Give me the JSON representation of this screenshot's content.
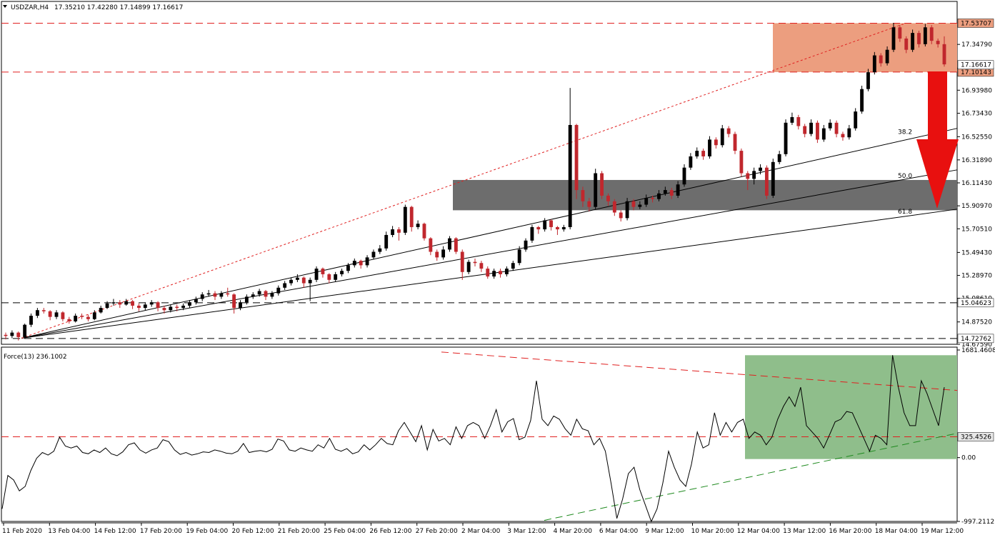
{
  "header": {
    "symbol": "USDZAR,H4",
    "ohlc": "17.35210 17.42280 17.14899 17.16617"
  },
  "indicator": {
    "label": "Force(13) 236.1002"
  },
  "colors": {
    "bull": "#000000",
    "bear": "#c0272d",
    "resistance_zone": "#ec9e7f",
    "support_zone": "#6d6d6d",
    "force_zone": "#8fbe8b",
    "arrow": "#e8100f",
    "dashed_red": "#e02020",
    "dashed_green": "#1f8a1f",
    "bid_label": "#000000"
  },
  "chart_data": [
    {
      "type": "candlestick",
      "title": "USDZAR,H4",
      "ylim": [
        14.6759,
        17.629
      ],
      "y_ticks": [
        "17.34790",
        "16.93980",
        "16.73430",
        "16.52550",
        "16.31890",
        "16.11430",
        "15.90970",
        "15.70510",
        "15.49430",
        "15.28970",
        "15.08610",
        "14.87520",
        "14.67590"
      ],
      "x_ticks": [
        "11 Feb 2020",
        "13 Feb 04:00",
        "14 Feb 12:00",
        "17 Feb 20:00",
        "19 Feb 04:00",
        "20 Feb 12:00",
        "21 Feb 20:00",
        "25 Feb 04:00",
        "26 Feb 12:00",
        "27 Feb 20:00",
        "2 Mar 04:00",
        "3 Mar 12:00",
        "4 Mar 20:00",
        "6 Mar 04:00",
        "9 Mar 12:00",
        "10 Mar 20:00",
        "12 Mar 04:00",
        "13 Mar 12:00",
        "16 Mar 20:00",
        "18 Mar 04:00",
        "19 Mar 12:00"
      ],
      "horizontal_levels": [
        {
          "value": 17.53707,
          "label": "17.53707"
        },
        {
          "value": 17.10143,
          "label": "17.10143"
        },
        {
          "value": 15.04623,
          "label": "15.04623"
        },
        {
          "value": 14.72762,
          "label": "14.72762"
        }
      ],
      "current_price": {
        "value": 17.16617,
        "label": "17.16617"
      },
      "zones": [
        {
          "name": "resistance",
          "from": 17.10143,
          "to": 17.53707
        },
        {
          "name": "support",
          "from": 15.87,
          "to": 16.14
        }
      ],
      "fib_fan_labels": [
        "38.2",
        "50.0",
        "61.8"
      ],
      "close": [
        14.75,
        14.78,
        14.74,
        14.85,
        14.93,
        14.98,
        14.97,
        14.92,
        14.96,
        14.9,
        14.88,
        14.93,
        14.92,
        14.9,
        14.96,
        15.0,
        15.04,
        15.05,
        15.03,
        15.06,
        15.02,
        15.0,
        15.03,
        15.05,
        15.0,
        14.98,
        15.01,
        15.0,
        15.02,
        15.05,
        15.08,
        15.12,
        15.13,
        15.1,
        15.13,
        15.12,
        15.0,
        15.05,
        15.1,
        15.12,
        15.15,
        15.1,
        15.13,
        15.18,
        15.22,
        15.25,
        15.27,
        15.22,
        15.25,
        15.35,
        15.3,
        15.25,
        15.3,
        15.33,
        15.38,
        15.42,
        15.38,
        15.45,
        15.5,
        15.53,
        15.65,
        15.7,
        15.67,
        15.9,
        15.72,
        15.75,
        15.62,
        15.5,
        15.45,
        15.52,
        15.62,
        15.5,
        15.32,
        15.41,
        15.4,
        15.35,
        15.28,
        15.33,
        15.3,
        15.35,
        15.4,
        15.52,
        15.6,
        15.72,
        15.7,
        15.78,
        15.72,
        15.7,
        15.72,
        16.63,
        16.05,
        15.95,
        15.9,
        16.2,
        16.0,
        15.95,
        15.85,
        15.8,
        15.95,
        15.9,
        15.92,
        15.98,
        15.97,
        16.02,
        16.05,
        16.0,
        16.1,
        16.25,
        16.35,
        16.4,
        16.35,
        16.5,
        16.45,
        16.6,
        16.55,
        16.4,
        16.2,
        16.15,
        16.22,
        16.25,
        16.0,
        16.3,
        16.37,
        16.65,
        16.7,
        16.62,
        16.55,
        16.65,
        16.5,
        16.6,
        16.65,
        16.55,
        16.52,
        16.6,
        16.75,
        16.95,
        17.1,
        17.25,
        17.18,
        17.3,
        17.5,
        17.4,
        17.3,
        17.45,
        17.35,
        17.5,
        17.38,
        17.35,
        17.17
      ],
      "ohlc": [
        [
          14.76,
          14.78,
          14.72,
          14.75
        ],
        [
          14.75,
          14.8,
          14.73,
          14.78
        ],
        [
          14.78,
          14.79,
          14.71,
          14.74
        ],
        [
          14.74,
          14.86,
          14.73,
          14.85
        ],
        [
          14.85,
          14.95,
          14.83,
          14.93
        ],
        [
          14.93,
          15.0,
          14.91,
          14.98
        ],
        [
          14.98,
          15.0,
          14.95,
          14.97
        ],
        [
          14.97,
          14.98,
          14.89,
          14.92
        ],
        [
          14.92,
          14.98,
          14.9,
          14.96
        ],
        [
          14.96,
          14.97,
          14.88,
          14.9
        ],
        [
          14.9,
          14.92,
          14.86,
          14.88
        ],
        [
          14.88,
          14.95,
          14.87,
          14.93
        ],
        [
          14.93,
          14.95,
          14.9,
          14.92
        ],
        [
          14.92,
          14.94,
          14.88,
          14.9
        ],
        [
          14.9,
          14.98,
          14.89,
          14.96
        ],
        [
          14.96,
          15.02,
          14.95,
          15.0
        ],
        [
          15.0,
          15.06,
          14.99,
          15.04
        ],
        [
          15.04,
          15.08,
          15.02,
          15.05
        ],
        [
          15.05,
          15.07,
          15.0,
          15.03
        ],
        [
          15.03,
          15.08,
          15.02,
          15.06
        ],
        [
          15.06,
          15.07,
          14.99,
          15.02
        ],
        [
          15.02,
          15.04,
          14.97,
          15.0
        ],
        [
          15.0,
          15.05,
          14.98,
          15.03
        ],
        [
          15.03,
          15.07,
          15.01,
          15.05
        ],
        [
          15.05,
          15.06,
          14.97,
          15.0
        ],
        [
          15.0,
          15.02,
          14.95,
          14.98
        ],
        [
          14.98,
          15.03,
          14.96,
          15.01
        ],
        [
          15.01,
          15.03,
          14.97,
          15.0
        ],
        [
          15.0,
          15.04,
          14.98,
          15.02
        ],
        [
          15.02,
          15.07,
          15.0,
          15.05
        ],
        [
          15.05,
          15.1,
          15.03,
          15.08
        ],
        [
          15.08,
          15.14,
          15.06,
          15.12
        ],
        [
          15.12,
          15.16,
          15.1,
          15.13
        ],
        [
          15.13,
          15.15,
          15.07,
          15.1
        ],
        [
          15.1,
          15.15,
          15.08,
          15.13
        ],
        [
          15.13,
          15.18,
          15.1,
          15.12
        ],
        [
          15.12,
          15.13,
          14.95,
          15.0
        ],
        [
          15.0,
          15.07,
          14.98,
          15.05
        ],
        [
          15.05,
          15.12,
          15.03,
          15.1
        ],
        [
          15.1,
          15.14,
          15.08,
          15.12
        ],
        [
          15.12,
          15.17,
          15.1,
          15.15
        ],
        [
          15.15,
          15.16,
          15.07,
          15.1
        ],
        [
          15.1,
          15.15,
          15.08,
          15.13
        ],
        [
          15.13,
          15.2,
          15.11,
          15.18
        ],
        [
          15.18,
          15.24,
          15.16,
          15.22
        ],
        [
          15.22,
          15.27,
          15.2,
          15.25
        ],
        [
          15.25,
          15.3,
          15.23,
          15.27
        ],
        [
          15.27,
          15.28,
          15.18,
          15.22
        ],
        [
          15.22,
          15.27,
          15.06,
          15.25
        ],
        [
          15.25,
          15.37,
          15.23,
          15.35
        ],
        [
          15.35,
          15.36,
          15.27,
          15.3
        ],
        [
          15.3,
          15.31,
          15.22,
          15.25
        ],
        [
          15.25,
          15.32,
          15.23,
          15.3
        ],
        [
          15.3,
          15.35,
          15.28,
          15.33
        ],
        [
          15.33,
          15.4,
          15.31,
          15.38
        ],
        [
          15.38,
          15.44,
          15.36,
          15.42
        ],
        [
          15.42,
          15.43,
          15.35,
          15.38
        ],
        [
          15.38,
          15.47,
          15.36,
          15.45
        ],
        [
          15.45,
          15.52,
          15.43,
          15.5
        ],
        [
          15.5,
          15.56,
          15.48,
          15.53
        ],
        [
          15.53,
          15.68,
          15.51,
          15.65
        ],
        [
          15.65,
          15.73,
          15.63,
          15.7
        ],
        [
          15.7,
          15.72,
          15.6,
          15.67
        ],
        [
          15.67,
          15.92,
          15.65,
          15.9
        ],
        [
          15.9,
          15.91,
          15.68,
          15.72
        ],
        [
          15.72,
          15.78,
          15.7,
          15.75
        ],
        [
          15.75,
          15.76,
          15.6,
          15.62
        ],
        [
          15.62,
          15.63,
          15.47,
          15.5
        ],
        [
          15.5,
          15.52,
          15.42,
          15.45
        ],
        [
          15.45,
          15.55,
          15.43,
          15.52
        ],
        [
          15.52,
          15.64,
          15.5,
          15.62
        ],
        [
          15.62,
          15.63,
          15.48,
          15.5
        ],
        [
          15.5,
          15.52,
          15.25,
          15.32
        ],
        [
          15.32,
          15.43,
          15.3,
          15.41
        ],
        [
          15.41,
          15.44,
          15.37,
          15.4
        ],
        [
          15.4,
          15.42,
          15.32,
          15.35
        ],
        [
          15.35,
          15.37,
          15.26,
          15.28
        ],
        [
          15.28,
          15.35,
          15.26,
          15.33
        ],
        [
          15.33,
          15.35,
          15.27,
          15.3
        ],
        [
          15.3,
          15.37,
          15.28,
          15.35
        ],
        [
          15.35,
          15.42,
          15.33,
          15.4
        ],
        [
          15.4,
          15.55,
          15.38,
          15.52
        ],
        [
          15.52,
          15.62,
          15.5,
          15.6
        ],
        [
          15.6,
          15.74,
          15.58,
          15.72
        ],
        [
          15.72,
          15.73,
          15.66,
          15.7
        ],
        [
          15.7,
          15.8,
          15.68,
          15.78
        ],
        [
          15.78,
          15.79,
          15.69,
          15.72
        ],
        [
          15.72,
          15.73,
          15.65,
          15.7
        ],
        [
          15.7,
          15.74,
          15.68,
          15.72
        ],
        [
          15.72,
          16.96,
          15.7,
          16.63
        ],
        [
          16.63,
          16.64,
          15.97,
          16.05
        ],
        [
          16.05,
          16.08,
          15.9,
          15.95
        ],
        [
          15.95,
          15.98,
          15.86,
          15.9
        ],
        [
          15.9,
          16.24,
          15.88,
          16.2
        ],
        [
          16.2,
          16.22,
          15.97,
          16.0
        ],
        [
          16.0,
          16.02,
          15.91,
          15.95
        ],
        [
          15.95,
          15.97,
          15.82,
          15.85
        ],
        [
          15.85,
          15.87,
          15.77,
          15.8
        ],
        [
          15.8,
          15.98,
          15.78,
          15.95
        ],
        [
          15.95,
          15.97,
          15.87,
          15.9
        ],
        [
          15.9,
          15.95,
          15.88,
          15.92
        ],
        [
          15.92,
          16.01,
          15.9,
          15.98
        ],
        [
          15.98,
          16.0,
          15.94,
          15.97
        ],
        [
          15.97,
          16.05,
          15.95,
          16.02
        ],
        [
          16.02,
          16.08,
          16.0,
          16.05
        ],
        [
          16.05,
          16.07,
          15.97,
          16.0
        ],
        [
          16.0,
          16.13,
          15.98,
          16.1
        ],
        [
          16.1,
          16.28,
          16.08,
          16.25
        ],
        [
          16.25,
          16.38,
          16.23,
          16.35
        ],
        [
          16.35,
          16.43,
          16.33,
          16.4
        ],
        [
          16.4,
          16.42,
          16.32,
          16.35
        ],
        [
          16.35,
          16.53,
          16.33,
          16.5
        ],
        [
          16.5,
          16.52,
          16.42,
          16.45
        ],
        [
          16.45,
          16.63,
          16.43,
          16.6
        ],
        [
          16.6,
          16.62,
          16.52,
          16.55
        ],
        [
          16.55,
          16.57,
          16.37,
          16.4
        ],
        [
          16.4,
          16.42,
          16.17,
          16.2
        ],
        [
          16.2,
          16.22,
          16.05,
          16.15
        ],
        [
          16.15,
          16.25,
          16.1,
          16.22
        ],
        [
          16.22,
          16.28,
          16.19,
          16.25
        ],
        [
          16.25,
          16.27,
          15.97,
          16.0
        ],
        [
          16.0,
          16.33,
          15.98,
          16.3
        ],
        [
          16.3,
          16.4,
          16.28,
          16.37
        ],
        [
          16.37,
          16.68,
          16.35,
          16.65
        ],
        [
          16.65,
          16.74,
          16.63,
          16.7
        ],
        [
          16.7,
          16.72,
          16.59,
          16.62
        ],
        [
          16.62,
          16.64,
          16.52,
          16.55
        ],
        [
          16.55,
          16.68,
          16.53,
          16.65
        ],
        [
          16.65,
          16.67,
          16.47,
          16.5
        ],
        [
          16.5,
          16.63,
          16.48,
          16.6
        ],
        [
          16.6,
          16.68,
          16.58,
          16.65
        ],
        [
          16.65,
          16.67,
          16.52,
          16.55
        ],
        [
          16.55,
          16.57,
          16.49,
          16.52
        ],
        [
          16.52,
          16.63,
          16.5,
          16.6
        ],
        [
          16.6,
          16.78,
          16.58,
          16.75
        ],
        [
          16.75,
          16.98,
          16.73,
          16.95
        ],
        [
          16.95,
          17.13,
          16.93,
          17.1
        ],
        [
          17.1,
          17.28,
          17.08,
          17.25
        ],
        [
          17.25,
          17.27,
          17.15,
          17.18
        ],
        [
          17.18,
          17.33,
          17.16,
          17.3
        ],
        [
          17.3,
          17.54,
          17.28,
          17.5
        ],
        [
          17.5,
          17.52,
          17.37,
          17.4
        ],
        [
          17.4,
          17.42,
          17.27,
          17.3
        ],
        [
          17.3,
          17.48,
          17.28,
          17.45
        ],
        [
          17.45,
          17.47,
          17.32,
          17.35
        ],
        [
          17.35,
          17.53,
          17.33,
          17.5
        ],
        [
          17.5,
          17.52,
          17.35,
          17.38
        ],
        [
          17.38,
          17.4,
          17.32,
          17.35
        ],
        [
          17.35,
          17.42,
          17.15,
          17.17
        ]
      ]
    },
    {
      "type": "line",
      "title": "Force(13) 236.1002",
      "ylim": [
        -997.2112,
        1681.4608
      ],
      "y_ticks": [
        "1681.4608",
        "0.00",
        "-997.2112"
      ],
      "levels": [
        {
          "value": 325.4526,
          "label": "325.4526"
        }
      ],
      "values": [
        -800,
        -280,
        -350,
        -520,
        -450,
        -200,
        -10,
        80,
        40,
        100,
        320,
        180,
        150,
        180,
        80,
        60,
        120,
        80,
        150,
        60,
        30,
        90,
        200,
        230,
        120,
        70,
        120,
        150,
        280,
        250,
        120,
        50,
        80,
        40,
        60,
        90,
        80,
        120,
        100,
        70,
        60,
        100,
        220,
        80,
        100,
        110,
        90,
        130,
        290,
        260,
        120,
        100,
        150,
        120,
        100,
        200,
        150,
        300,
        130,
        100,
        140,
        60,
        90,
        200,
        120,
        200,
        300,
        220,
        200,
        420,
        550,
        400,
        250,
        500,
        120,
        440,
        260,
        300,
        200,
        480,
        300,
        500,
        550,
        500,
        300,
        500,
        750,
        400,
        560,
        610,
        280,
        320,
        580,
        1200,
        600,
        500,
        650,
        600,
        450,
        350,
        600,
        450,
        420,
        200,
        300,
        100,
        -400,
        -950,
        -650,
        -250,
        -150,
        -500,
        -750,
        -1000,
        -800,
        -400,
        100,
        -150,
        -350,
        -450,
        -100,
        400,
        150,
        200,
        700,
        350,
        550,
        400,
        550,
        600,
        300,
        400,
        350,
        200,
        320,
        600,
        800,
        950,
        800,
        1100,
        500,
        400,
        300,
        150,
        350,
        560,
        600,
        720,
        700,
        500,
        300,
        100,
        350,
        300,
        200,
        1600,
        1100,
        700,
        500,
        500,
        1200,
        1000,
        750,
        500,
        1100
      ]
    }
  ]
}
